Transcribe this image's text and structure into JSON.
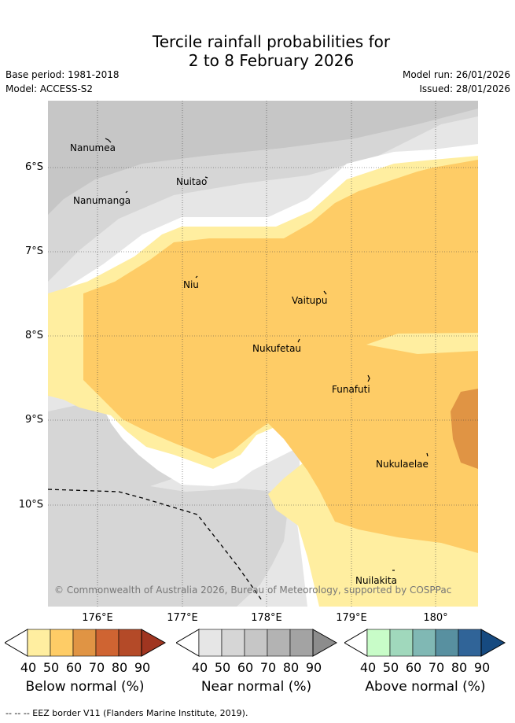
{
  "title": {
    "line1": "Tercile rainfall probabilities for",
    "line2": "2 to 8 February 2026"
  },
  "meta": {
    "base_period": "Base period: 1981-2018",
    "model": "Model: ACCESS-S2",
    "model_run": "Model run: 26/01/2026",
    "issued": "Issued: 28/01/2026"
  },
  "map": {
    "longitude_labels": [
      "176°E",
      "177°E",
      "178°E",
      "179°E",
      "180°"
    ],
    "latitude_labels": [
      "6°S",
      "7°S",
      "8°S",
      "9°S",
      "10°S"
    ],
    "islands": [
      "Nanumea",
      "Nuitao",
      "Nanumanga",
      "Niu",
      "Vaitupu",
      "Nukufetau",
      "Funafuti",
      "Nukulaelae",
      "Nuilakita"
    ],
    "copyright": "© Commonwealth of Australia 2026, Bureau of Meteorology, supported by COSPPac",
    "colors": {
      "below_40": "#ffeea0",
      "below_50": "#fecc66",
      "below_60": "#e09444",
      "near_40": "#e6e6e6",
      "near_50": "#d6d6d6",
      "near_60": "#c6c6c6"
    }
  },
  "legend": {
    "ticks": [
      "40",
      "50",
      "60",
      "70",
      "80",
      "90"
    ],
    "below": {
      "title": "Below normal (%)",
      "colors": [
        "#ffeea0",
        "#fecc66",
        "#e09444",
        "#cf6432",
        "#b44a28",
        "#a03520"
      ]
    },
    "near": {
      "title": "Near normal (%)",
      "colors": [
        "#e6e6e6",
        "#d6d6d6",
        "#c6c6c6",
        "#b3b3b3",
        "#a3a3a3",
        "#8c8c8c"
      ]
    },
    "above": {
      "title": "Above normal (%)",
      "colors": [
        "#c8fcc8",
        "#a0d8bc",
        "#80b8b4",
        "#5890a0",
        "#306498",
        "#164a80"
      ]
    }
  },
  "footnote": "--  --  -- EEZ border V11 (Flanders Marine Institute, 2019)."
}
